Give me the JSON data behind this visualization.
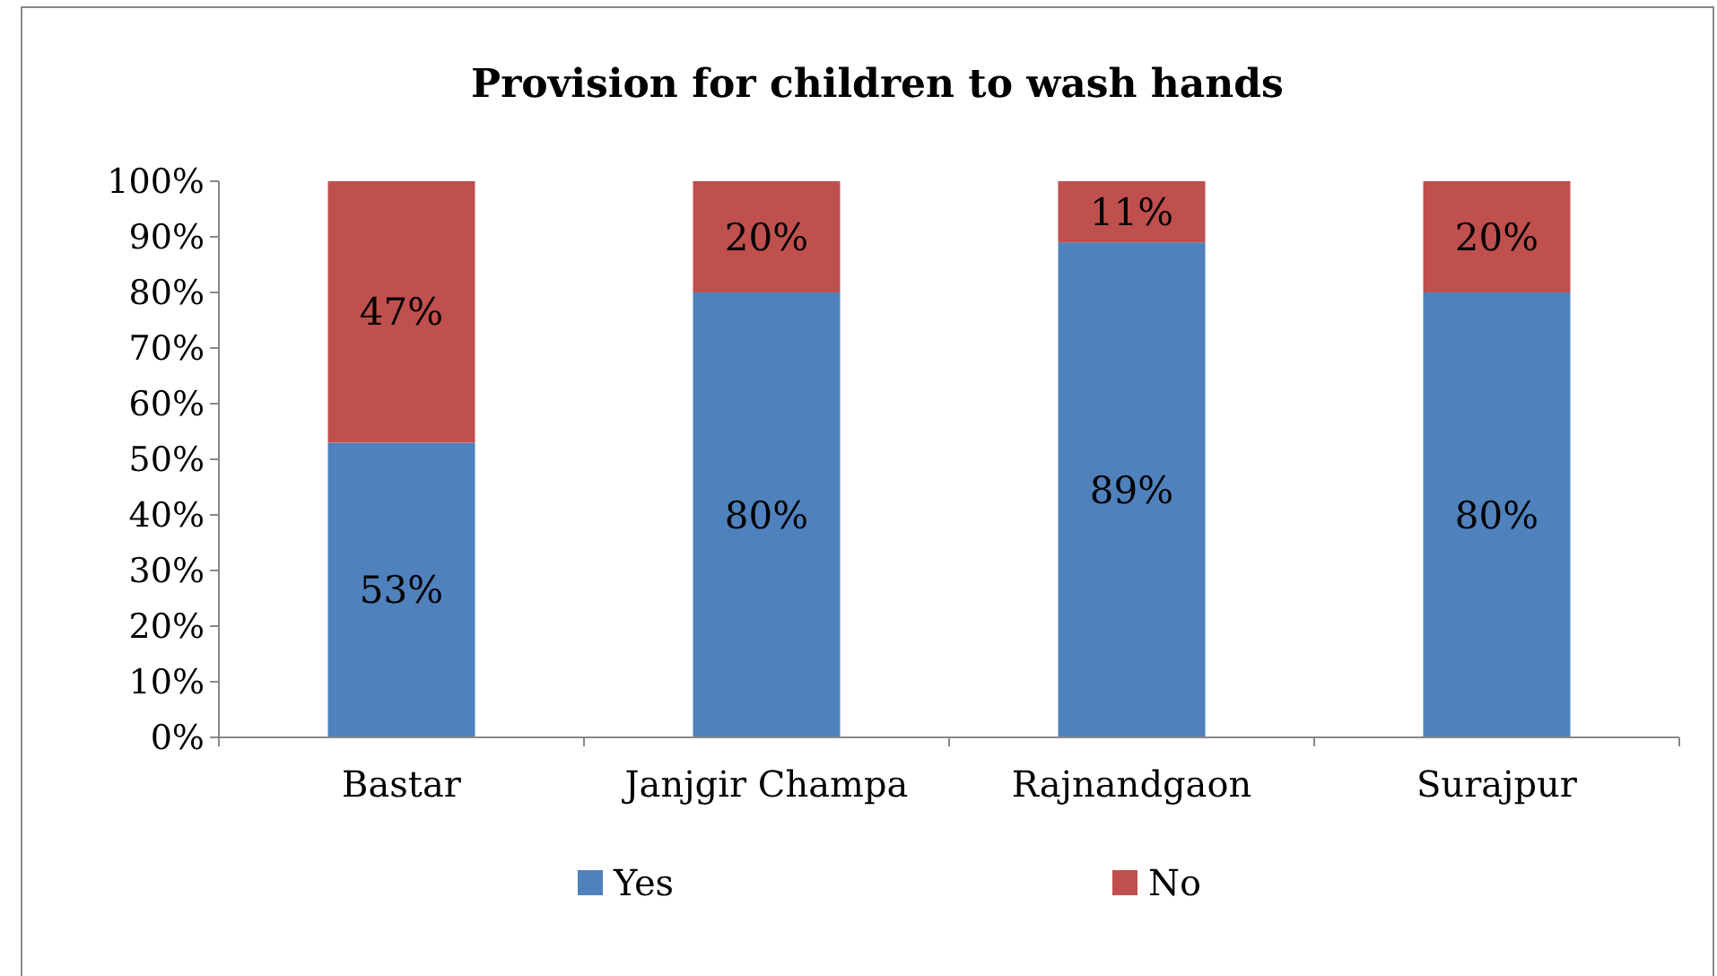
{
  "chart_data": {
    "type": "bar",
    "title": "Provision for children to wash hands",
    "categories": [
      "Bastar",
      "Janjgir Champa",
      "Rajnandgaon",
      "Surajpur"
    ],
    "stacked": true,
    "legend": "bottom",
    "grid": false,
    "series": [
      {
        "name": "Yes",
        "color": "#4f81bd",
        "values": [
          53,
          80,
          89,
          80
        ],
        "value_labels": [
          "53%",
          "80%",
          "89%",
          "80%"
        ]
      },
      {
        "name": "No",
        "color": "#c0504d",
        "values": [
          47,
          20,
          11,
          20
        ],
        "value_labels": [
          "47%",
          "20%",
          "11%",
          "20%"
        ]
      }
    ],
    "ylim": [
      0,
      100
    ],
    "yticks": [
      {
        "value": 0,
        "label": "0%"
      },
      {
        "value": 10,
        "label": "10%"
      },
      {
        "value": 20,
        "label": "20%"
      },
      {
        "value": 30,
        "label": "30%"
      },
      {
        "value": 40,
        "label": "40%"
      },
      {
        "value": 50,
        "label": "50%"
      },
      {
        "value": 60,
        "label": "60%"
      },
      {
        "value": 70,
        "label": "70%"
      },
      {
        "value": 80,
        "label": "80%"
      },
      {
        "value": 90,
        "label": "90%"
      },
      {
        "value": 100,
        "label": "100%"
      }
    ]
  }
}
